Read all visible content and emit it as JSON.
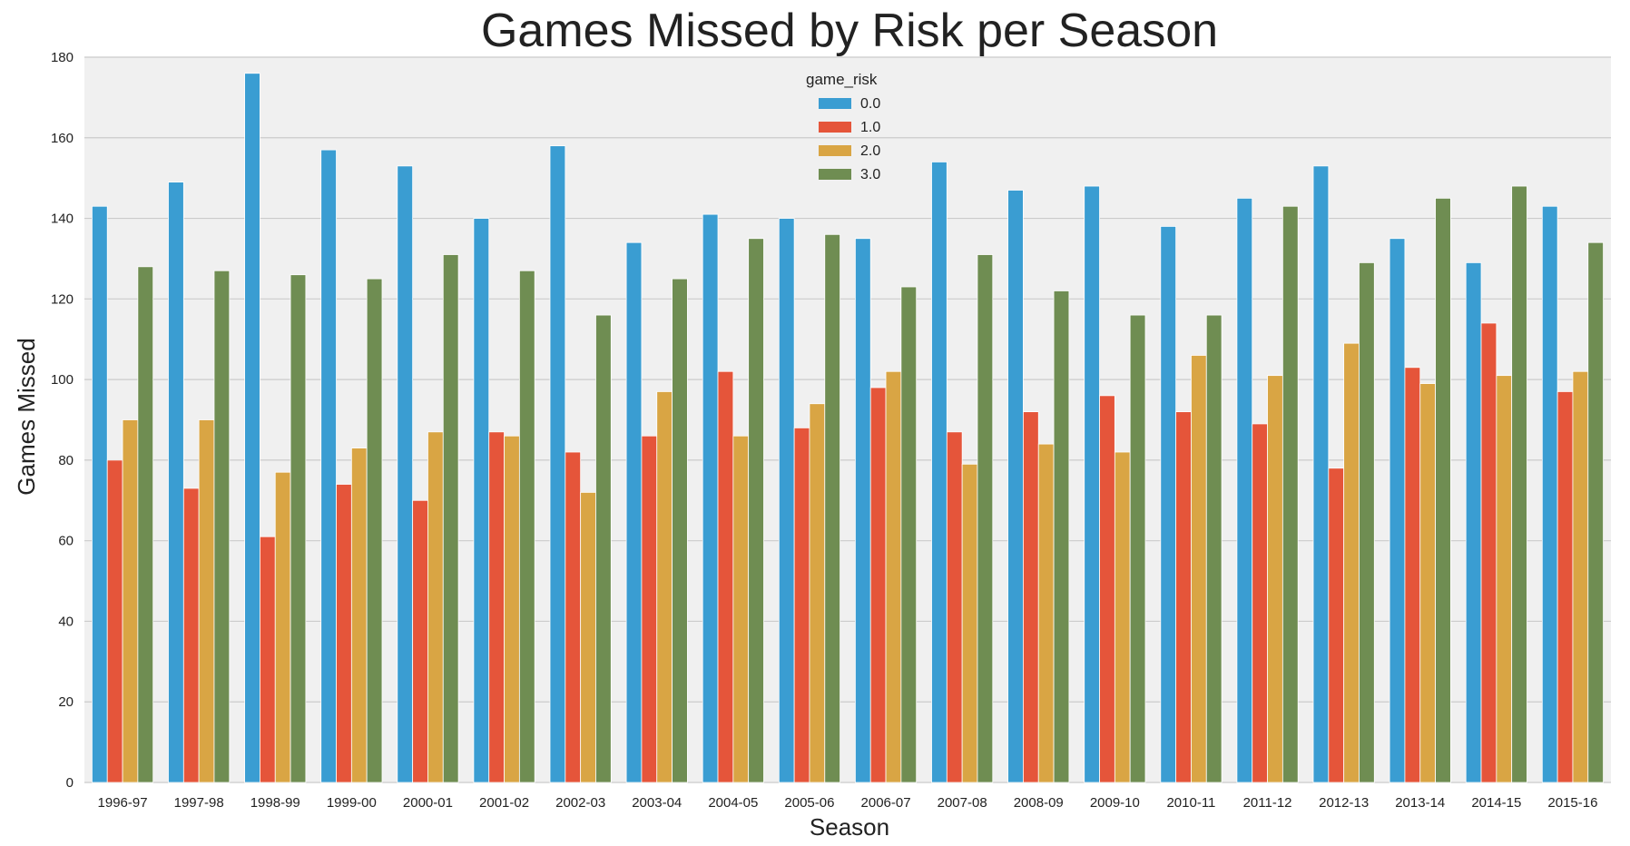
{
  "chart_data": {
    "type": "bar",
    "title": "Games Missed by Risk per Season",
    "xlabel": "Season",
    "ylabel": "Games Missed",
    "ylim": [
      0,
      180
    ],
    "yticks": [
      "0",
      "20",
      "40",
      "60",
      "80",
      "100",
      "120",
      "140",
      "160",
      "180"
    ],
    "grid": true,
    "legend": {
      "title": "game_risk",
      "placement": "top-center"
    },
    "categories": [
      "1996-97",
      "1997-98",
      "1998-99",
      "1999-00",
      "2000-01",
      "2001-02",
      "2002-03",
      "2003-04",
      "2004-05",
      "2005-06",
      "2006-07",
      "2007-08",
      "2008-09",
      "2009-10",
      "2010-11",
      "2011-12",
      "2012-13",
      "2013-14",
      "2014-15",
      "2015-16"
    ],
    "series": [
      {
        "name": "0.0",
        "color": "#3a9dd2",
        "values": [
          143,
          149,
          176,
          157,
          153,
          140,
          158,
          134,
          141,
          140,
          135,
          154,
          147,
          148,
          138,
          145,
          153,
          135,
          129,
          143
        ]
      },
      {
        "name": "1.0",
        "color": "#e5553a",
        "values": [
          80,
          73,
          61,
          74,
          70,
          87,
          82,
          86,
          102,
          88,
          98,
          87,
          92,
          96,
          92,
          89,
          78,
          103,
          114,
          97
        ]
      },
      {
        "name": "2.0",
        "color": "#d9a544",
        "values": [
          90,
          90,
          77,
          83,
          87,
          86,
          72,
          97,
          86,
          94,
          102,
          79,
          84,
          82,
          106,
          101,
          109,
          99,
          101,
          102
        ]
      },
      {
        "name": "3.0",
        "color": "#6f8d52",
        "values": [
          128,
          127,
          126,
          125,
          131,
          127,
          116,
          125,
          135,
          136,
          123,
          131,
          122,
          116,
          116,
          143,
          129,
          145,
          148,
          134
        ]
      }
    ]
  }
}
